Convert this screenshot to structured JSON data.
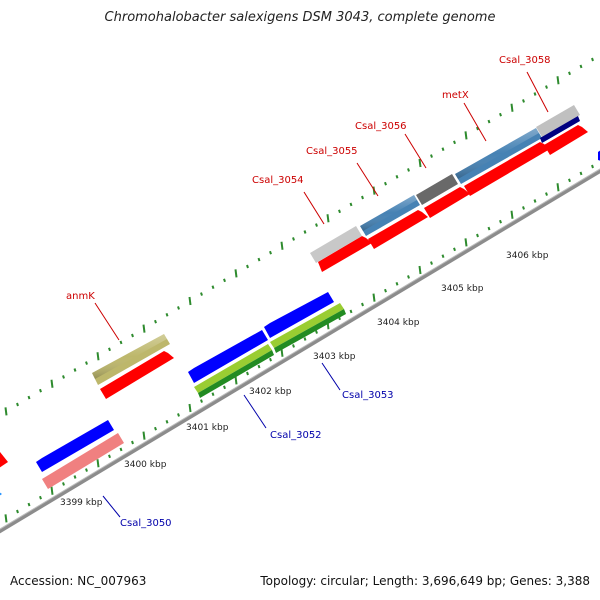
{
  "title": "Chromohalobacter salexigens DSM 3043, complete genome",
  "footer": {
    "accession": "Accession: NC_007963",
    "summary": "Topology: circular; Length: 3,696,649 bp; Genes: 3,388"
  },
  "scale_labels": [
    "3399 kbp",
    "3400 kbp",
    "3401 kbp",
    "3402 kbp",
    "3403 kbp",
    "3404 kbp",
    "3405 kbp",
    "3406 kbp"
  ],
  "gene_labels": {
    "forward": [
      "anmK",
      "Csal_3054",
      "Csal_3055",
      "Csal_3056",
      "metX",
      "Csal_3058"
    ],
    "reverse": [
      "Csal_3050",
      "Csal_3052",
      "Csal_3053"
    ]
  },
  "colors": {
    "forward_label": "#cc0000",
    "reverse_label": "#0000aa",
    "backbone": "#8c8c8c",
    "tick_green": "#2e8b2e",
    "cds_red": "#ff0000",
    "cds_blue": "#0000ff",
    "cds_olive": "#bdb76b",
    "cds_steelblue": "#4682b4",
    "cds_grey": "#c0c0c0",
    "cds_darkgrey": "#696969",
    "cds_navy": "#000080",
    "cds_pink": "#f08080",
    "cds_lime": "#9acd32",
    "cds_green": "#228b22"
  }
}
